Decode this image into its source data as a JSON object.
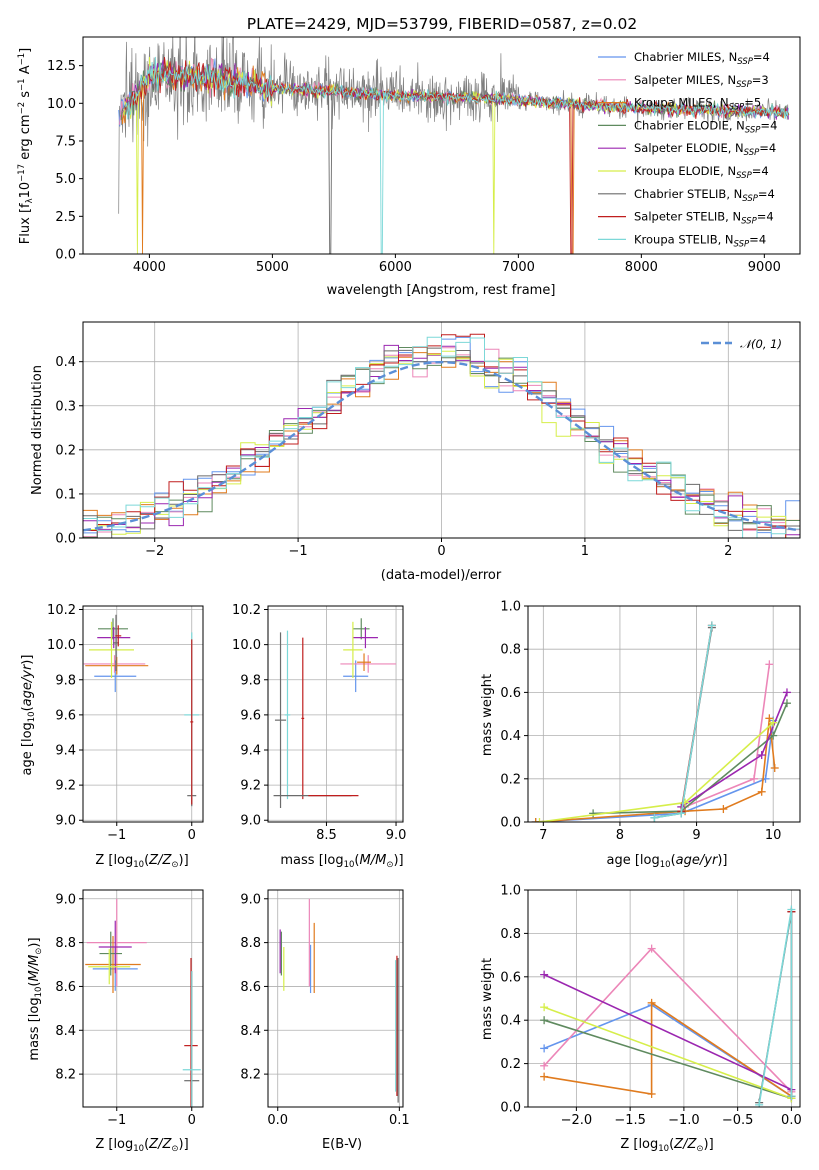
{
  "colors": {
    "Chabrier MILES": "#6495ed",
    "Salpeter MILES": "#ec86b8",
    "Kroupa MILES": "#e07b1e",
    "Chabrier ELODIE": "#5f8a5f",
    "Salpeter ELODIE": "#9b27b0",
    "Kroupa ELODIE": "#d6ee4a",
    "Chabrier STELIB": "#6b6b6b",
    "Salpeter STELIB": "#c01e1e",
    "Kroupa STELIB": "#7cd8d8"
  },
  "chart_data": [
    {
      "type": "line",
      "title": "PLATE=2429, MJD=53799, FIBERID=0587, z=0.02",
      "xlabel": "wavelength [Angstrom, rest frame]",
      "ylabel": "Flux [f_λ 10^-17 erg cm^-2 s^-1 A^-1]",
      "xlim": [
        3460,
        9290
      ],
      "ylim": [
        0,
        14.4
      ],
      "xticks": [
        "4000",
        "5000",
        "6000",
        "7000",
        "8000",
        "9000"
      ],
      "yticks": [
        "0.0",
        "2.5",
        "5.0",
        "7.5",
        "10.0",
        "12.5"
      ],
      "grid": false,
      "legend": "top-right",
      "legend_entries": [
        {
          "model": "Chabrier MILES",
          "nssp": "4"
        },
        {
          "model": "Salpeter MILES",
          "nssp": "3"
        },
        {
          "model": "Kroupa MILES",
          "nssp": "5"
        },
        {
          "model": "Chabrier ELODIE",
          "nssp": "4"
        },
        {
          "model": "Salpeter ELODIE",
          "nssp": "4"
        },
        {
          "model": "Kroupa ELODIE",
          "nssp": "4"
        },
        {
          "model": "Chabrier STELIB",
          "nssp": "4"
        },
        {
          "model": "Salpeter STELIB",
          "nssp": "4"
        },
        {
          "model": "Kroupa STELIB",
          "nssp": "4"
        }
      ],
      "spectrum_envelope": {
        "x": [
          3750,
          3900,
          4000,
          4200,
          4500,
          5000,
          5500,
          6000,
          6500,
          7000,
          7500,
          8000,
          8500,
          9200
        ],
        "y": [
          9.0,
          10.6,
          11.8,
          11.9,
          11.7,
          11.0,
          10.8,
          10.5,
          10.4,
          10.2,
          9.9,
          9.7,
          9.55,
          9.4
        ]
      },
      "model_dropouts": [
        {
          "model": "Kroupa ELODIE",
          "x": 3900
        },
        {
          "model": "Kroupa MILES",
          "x": 3945
        },
        {
          "model": "Chabrier STELIB",
          "x": 5470
        },
        {
          "model": "Kroupa STELIB",
          "x": 5890
        },
        {
          "model": "Kroupa ELODIE",
          "x": 6800
        },
        {
          "model": "Salpeter STELIB",
          "x": 7430
        },
        {
          "model": "Kroupa MILES",
          "x": 7440
        }
      ]
    },
    {
      "type": "line",
      "xlabel": "(data-model)/error",
      "ylabel": "Normed distribution",
      "xlim": [
        -2.5,
        2.5
      ],
      "ylim": [
        0,
        0.49
      ],
      "xticks": [
        "−2",
        "−1",
        "0",
        "1",
        "2"
      ],
      "yticks": [
        "0.0",
        "0.1",
        "0.2",
        "0.3",
        "0.4"
      ],
      "grid": true,
      "legend": "top-right",
      "reference_label": "𝒩(0, 1)",
      "histogram_bin_width": 0.1
    },
    {
      "type": "scatter",
      "xlabel": "Z [log10(Z/Z⊙)]",
      "ylabel": "age  [log10(age/yr)]",
      "xlim": [
        -1.45,
        0.15
      ],
      "ylim": [
        8.99,
        10.22
      ],
      "xticks": [
        "−1",
        "0"
      ],
      "yticks": [
        "9.0",
        "9.2",
        "9.4",
        "9.6",
        "9.8",
        "10.0",
        "10.2"
      ],
      "grid": true,
      "error_bars": [
        {
          "model": "Chabrier MILES",
          "x": -1.02,
          "y": 9.82,
          "xerr": 0.28,
          "yerr": 0.09
        },
        {
          "model": "Salpeter MILES",
          "x": -1.03,
          "y": 9.89,
          "xerr": 0.41,
          "yerr": 0.05
        },
        {
          "model": "Kroupa MILES",
          "x": -1.0,
          "y": 9.88,
          "xerr": 0.42,
          "yerr": 0.05
        },
        {
          "model": "Chabrier ELODIE",
          "x": -1.05,
          "y": 10.09,
          "xerr": 0.2,
          "yerr": 0.06
        },
        {
          "model": "Salpeter ELODIE",
          "x": -1.04,
          "y": 10.04,
          "xerr": 0.22,
          "yerr": 0.06
        },
        {
          "model": "Kroupa ELODIE",
          "x": -1.07,
          "y": 9.97,
          "xerr": 0.3,
          "yerr": 0.16
        },
        {
          "model": "Chabrier STELIB",
          "x": -1.01,
          "y": 10.01,
          "xerr": 0.04,
          "yerr": 0.16
        },
        {
          "model": "Salpeter STELIB",
          "x": -0.98,
          "y": 10.05,
          "xerr": 0.04,
          "yerr": 0.06
        },
        {
          "model": "Chabrier STELIB",
          "x": 0.0,
          "y": 9.14,
          "xerr": 0.06,
          "yerr": 0.06
        },
        {
          "model": "Kroupa STELIB",
          "x": 0.0,
          "y": 9.6,
          "xerr": 0.1,
          "yerr": 0.47
        },
        {
          "model": "Salpeter STELIB",
          "x": 0.0,
          "y": 9.56,
          "xerr": 0.02,
          "yerr": 0.47
        }
      ]
    },
    {
      "type": "scatter",
      "xlabel": "mass [log10(M/M⊙)]",
      "ylabel": "",
      "xlim": [
        8.08,
        9.05
      ],
      "ylim": [
        8.99,
        10.22
      ],
      "xticks": [
        "8.5",
        "9.0"
      ],
      "yticks": [
        "9.0",
        "9.2",
        "9.4",
        "9.6",
        "9.8",
        "10.0",
        "10.2"
      ],
      "grid": true,
      "error_bars": [
        {
          "model": "Chabrier MILES",
          "x": 8.71,
          "y": 9.82,
          "xerr": 0.09,
          "yerr": 0.09
        },
        {
          "model": "Salpeter MILES",
          "x": 8.8,
          "y": 9.89,
          "xerr": 0.2,
          "yerr": 0.05
        },
        {
          "model": "Kroupa MILES",
          "x": 8.77,
          "y": 9.9,
          "xerr": 0.05,
          "yerr": 0.05
        },
        {
          "model": "Chabrier ELODIE",
          "x": 8.75,
          "y": 10.09,
          "xerr": 0.06,
          "yerr": 0.06
        },
        {
          "model": "Salpeter ELODIE",
          "x": 8.78,
          "y": 10.04,
          "xerr": 0.09,
          "yerr": 0.06
        },
        {
          "model": "Kroupa ELODIE",
          "x": 8.69,
          "y": 9.97,
          "xerr": 0.07,
          "yerr": 0.16
        },
        {
          "model": "Chabrier STELIB",
          "x": 8.17,
          "y": 9.57,
          "xerr": 0.04,
          "yerr": 0.5
        },
        {
          "model": "Salpeter STELIB",
          "x": 8.33,
          "y": 9.58,
          "xerr": 0.01,
          "yerr": 0.46
        },
        {
          "model": "Kroupa STELIB",
          "x": 8.22,
          "y": 9.6,
          "xerr": 0.02,
          "yerr": 0.48
        },
        {
          "model": "Chabrier STELIB",
          "x": 8.4,
          "y": 9.14,
          "xerr": 0.28,
          "yerr": 0.0
        },
        {
          "model": "Salpeter STELIB",
          "x": 8.55,
          "y": 9.14,
          "xerr": 0.18,
          "yerr": 0.0
        }
      ]
    },
    {
      "type": "line",
      "xlabel": "age  [log10(age/yr)]",
      "ylabel": "mass weight",
      "xlim": [
        6.8,
        10.35
      ],
      "ylim": [
        0,
        1.0
      ],
      "xticks": [
        "7",
        "8",
        "9",
        "10"
      ],
      "yticks": [
        "0.0",
        "0.2",
        "0.4",
        "0.6",
        "0.8",
        "1.0"
      ],
      "grid": true,
      "series": [
        {
          "model": "Chabrier MILES",
          "x": [
            6.9,
            8.8,
            9.9,
            10.0
          ],
          "y": [
            0.0,
            0.04,
            0.2,
            0.47
          ]
        },
        {
          "model": "Salpeter MILES",
          "x": [
            8.85,
            9.75,
            9.95
          ],
          "y": [
            0.07,
            0.2,
            0.73
          ]
        },
        {
          "model": "Kroupa MILES",
          "x": [
            6.9,
            8.85,
            9.35,
            9.85,
            9.95,
            10.02
          ],
          "y": [
            0.0,
            0.05,
            0.06,
            0.14,
            0.48,
            0.25
          ]
        },
        {
          "model": "Chabrier ELODIE",
          "x": [
            7.65,
            8.8,
            10.0,
            10.18
          ],
          "y": [
            0.04,
            0.05,
            0.4,
            0.55
          ]
        },
        {
          "model": "Salpeter ELODIE",
          "x": [
            8.8,
            9.85,
            10.18
          ],
          "y": [
            0.07,
            0.31,
            0.6
          ]
        },
        {
          "model": "Kroupa ELODIE",
          "x": [
            6.95,
            8.85,
            10.0
          ],
          "y": [
            0.0,
            0.09,
            0.46
          ]
        },
        {
          "model": "Chabrier STELIB",
          "x": [
            8.45,
            8.8,
            9.2
          ],
          "y": [
            0.02,
            0.04,
            0.9
          ]
        },
        {
          "model": "Salpeter STELIB",
          "x": [
            8.8,
            9.2
          ],
          "y": [
            0.05,
            0.91
          ]
        },
        {
          "model": "Kroupa STELIB",
          "x": [
            8.45,
            8.8,
            9.2
          ],
          "y": [
            0.02,
            0.04,
            0.91
          ]
        }
      ]
    },
    {
      "type": "scatter",
      "xlabel": "Z [log10(Z/Z⊙)]",
      "ylabel": "mass [log10(M/M⊙)]",
      "xlim": [
        -1.45,
        0.15
      ],
      "ylim": [
        8.05,
        9.04
      ],
      "xticks": [
        "−1",
        "0"
      ],
      "yticks": [
        "8.2",
        "8.4",
        "8.6",
        "8.8",
        "9.0"
      ],
      "grid": true,
      "error_bars": [
        {
          "model": "Chabrier MILES",
          "x": -1.02,
          "y": 8.68,
          "xerr": 0.3,
          "yerr": 0.1
        },
        {
          "model": "Salpeter MILES",
          "x": -1.0,
          "y": 8.8,
          "xerr": 0.4,
          "yerr": 0.2
        },
        {
          "model": "Kroupa MILES",
          "x": -1.05,
          "y": 8.7,
          "xerr": 0.37,
          "yerr": 0.13
        },
        {
          "model": "Chabrier ELODIE",
          "x": -1.08,
          "y": 8.75,
          "xerr": 0.15,
          "yerr": 0.1
        },
        {
          "model": "Salpeter ELODIE",
          "x": -1.02,
          "y": 8.78,
          "xerr": 0.22,
          "yerr": 0.12
        },
        {
          "model": "Kroupa ELODIE",
          "x": -1.1,
          "y": 8.69,
          "xerr": 0.28,
          "yerr": 0.08
        },
        {
          "model": "Chabrier STELIB",
          "x": 0.0,
          "y": 8.17,
          "xerr": 0.1,
          "yerr": 0.5
        },
        {
          "model": "Salpeter STELIB",
          "x": -0.01,
          "y": 8.33,
          "xerr": 0.09,
          "yerr": 0.4
        },
        {
          "model": "Kroupa STELIB",
          "x": 0.0,
          "y": 8.22,
          "xerr": 0.12,
          "yerr": 0.45
        }
      ]
    },
    {
      "type": "scatter",
      "xlabel": "E(B-V)",
      "ylabel": "",
      "xlim": [
        -0.008,
        0.103
      ],
      "ylim": [
        8.05,
        9.04
      ],
      "xticks": [
        "0.0",
        "0.1"
      ],
      "yticks": [
        "8.2",
        "8.4",
        "8.6",
        "8.8",
        "9.0"
      ],
      "grid": true,
      "error_bars": [
        {
          "model": "Chabrier MILES",
          "x": 0.027,
          "y": 8.68,
          "xerr": 0.0,
          "yerr": 0.11
        },
        {
          "model": "Salpeter MILES",
          "x": 0.026,
          "y": 8.8,
          "xerr": 0.0,
          "yerr": 0.2
        },
        {
          "model": "Kroupa MILES",
          "x": 0.03,
          "y": 8.73,
          "xerr": 0.0,
          "yerr": 0.16
        },
        {
          "model": "Chabrier ELODIE",
          "x": 0.003,
          "y": 8.75,
          "xerr": 0.0,
          "yerr": 0.1
        },
        {
          "model": "Salpeter ELODIE",
          "x": 0.002,
          "y": 8.76,
          "xerr": 0.0,
          "yerr": 0.1
        },
        {
          "model": "Kroupa ELODIE",
          "x": 0.005,
          "y": 8.68,
          "xerr": 0.0,
          "yerr": 0.1
        },
        {
          "model": "Chabrier STELIB",
          "x": 0.099,
          "y": 8.4,
          "xerr": 0.0,
          "yerr": 0.33
        },
        {
          "model": "Salpeter STELIB",
          "x": 0.098,
          "y": 8.42,
          "xerr": 0.0,
          "yerr": 0.32
        },
        {
          "model": "Kroupa STELIB",
          "x": 0.097,
          "y": 8.42,
          "xerr": 0.0,
          "yerr": 0.3
        }
      ]
    },
    {
      "type": "line",
      "xlabel": "Z [log10(Z/Z⊙)]",
      "ylabel": "mass weight",
      "xlim": [
        -2.45,
        0.08
      ],
      "ylim": [
        0,
        1.0
      ],
      "xticks": [
        "−2.0",
        "−1.5",
        "−1.0",
        "−0.5",
        "0.0"
      ],
      "yticks": [
        "0.0",
        "0.2",
        "0.4",
        "0.6",
        "0.8",
        "1.0"
      ],
      "grid": true,
      "series": [
        {
          "model": "Chabrier MILES",
          "x": [
            -2.3,
            -1.3,
            0.0
          ],
          "y": [
            0.27,
            0.47,
            0.05
          ]
        },
        {
          "model": "Salpeter MILES",
          "x": [
            -2.3,
            -1.3,
            0.0
          ],
          "y": [
            0.19,
            0.73,
            0.07
          ]
        },
        {
          "model": "Kroupa MILES",
          "x": [
            -2.3,
            -1.3,
            -1.3,
            0.0
          ],
          "y": [
            0.14,
            0.06,
            0.48,
            0.05
          ]
        },
        {
          "model": "Chabrier ELODIE",
          "x": [
            -2.3,
            0.0
          ],
          "y": [
            0.4,
            0.04
          ]
        },
        {
          "model": "Salpeter ELODIE",
          "x": [
            -2.3,
            0.0
          ],
          "y": [
            0.61,
            0.08
          ]
        },
        {
          "model": "Kroupa ELODIE",
          "x": [
            -2.3,
            0.0
          ],
          "y": [
            0.46,
            0.04
          ]
        },
        {
          "model": "Chabrier STELIB",
          "x": [
            -0.3,
            0.0,
            0.0
          ],
          "y": [
            0.02,
            0.9,
            0.05
          ]
        },
        {
          "model": "Salpeter STELIB",
          "x": [
            0.0,
            0.0
          ],
          "y": [
            0.05,
            0.9
          ]
        },
        {
          "model": "Kroupa STELIB",
          "x": [
            -0.3,
            0.0,
            0.0
          ],
          "y": [
            0.01,
            0.91,
            0.05
          ]
        }
      ]
    }
  ]
}
